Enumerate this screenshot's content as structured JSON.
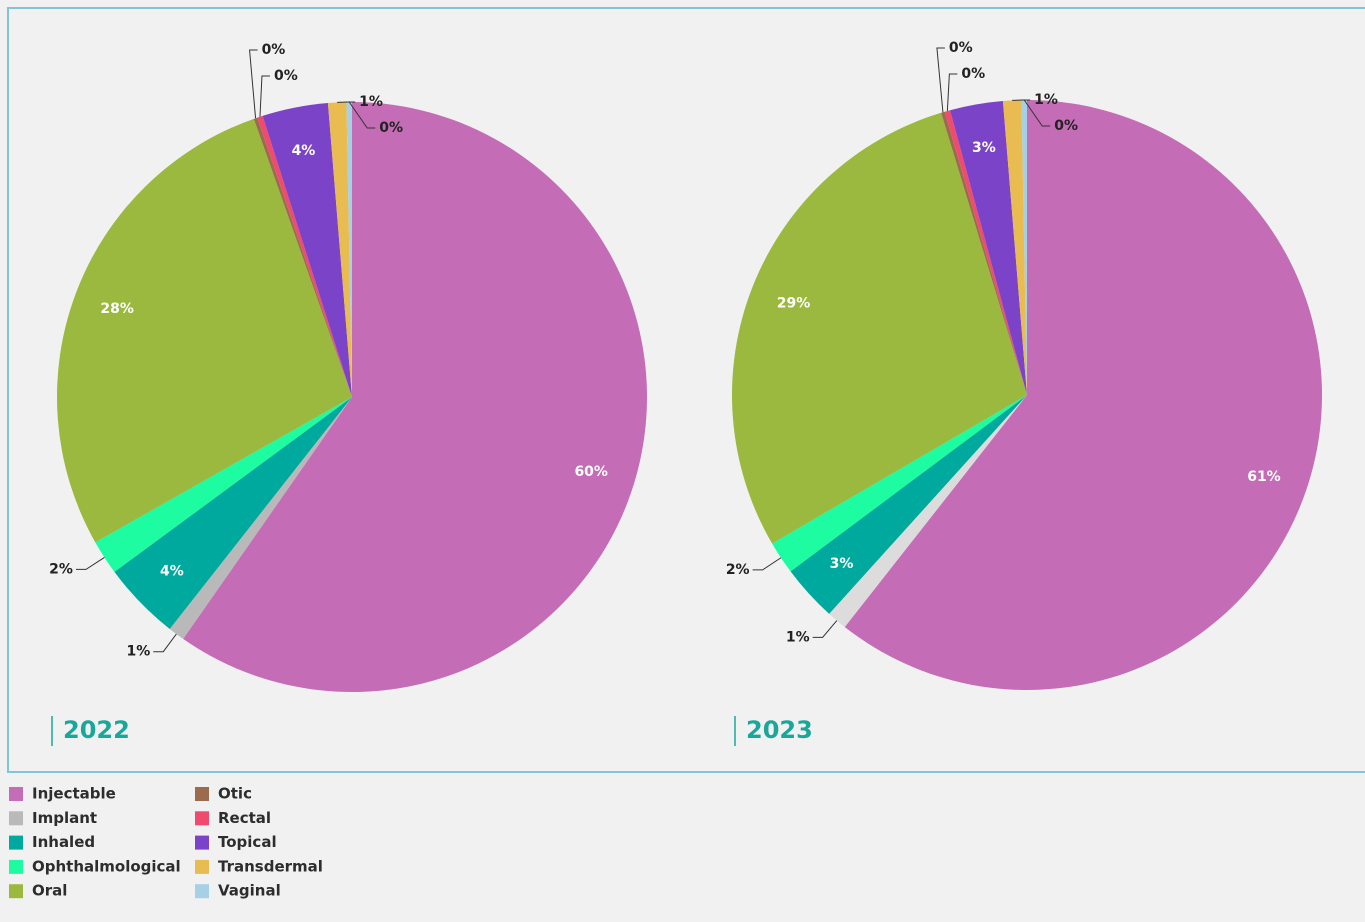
{
  "chart_data": [
    {
      "type": "pie",
      "title": "2022",
      "categories": [
        "Injectable",
        "Implant",
        "Inhaled",
        "Ophthalmological",
        "Oral",
        "Otic",
        "Rectal",
        "Topical",
        "Transdermal",
        "Vaginal"
      ],
      "values": [
        59.7,
        0.9,
        4.3,
        1.9,
        27.8,
        0.2,
        0.3,
        3.6,
        1.0,
        0.3
      ],
      "value_labels": [
        "60%",
        "1%",
        "4%",
        "2%",
        "28%",
        "0%",
        "0%",
        "4%",
        "1%",
        "0%"
      ],
      "colors": [
        "#c56cb6",
        "#b9b9b9",
        "#00a99d",
        "#1dfca0",
        "#9ab93e",
        "#9b6b4e",
        "#f04a6e",
        "#7b43c8",
        "#e9bc52",
        "#a6d0e6"
      ]
    },
    {
      "type": "pie",
      "title": "2023",
      "categories": [
        "Injectable",
        "Implant",
        "Inhaled",
        "Ophthalmological",
        "Oral",
        "Otic",
        "Rectal",
        "Topical",
        "Transdermal",
        "Vaginal"
      ],
      "values": [
        60.6,
        1.1,
        3.1,
        1.8,
        28.7,
        0.2,
        0.3,
        2.9,
        1.0,
        0.3
      ],
      "value_labels": [
        "61%",
        "1%",
        "3%",
        "2%",
        "29%",
        "0%",
        "0%",
        "3%",
        "1%",
        "0%"
      ],
      "colors": [
        "#c56cb6",
        "#dcdcdc",
        "#00a99d",
        "#1dfca0",
        "#9ab93e",
        "#9b6b4e",
        "#f04a6e",
        "#7b43c8",
        "#e9bc52",
        "#a6d0e6"
      ]
    }
  ]
}
